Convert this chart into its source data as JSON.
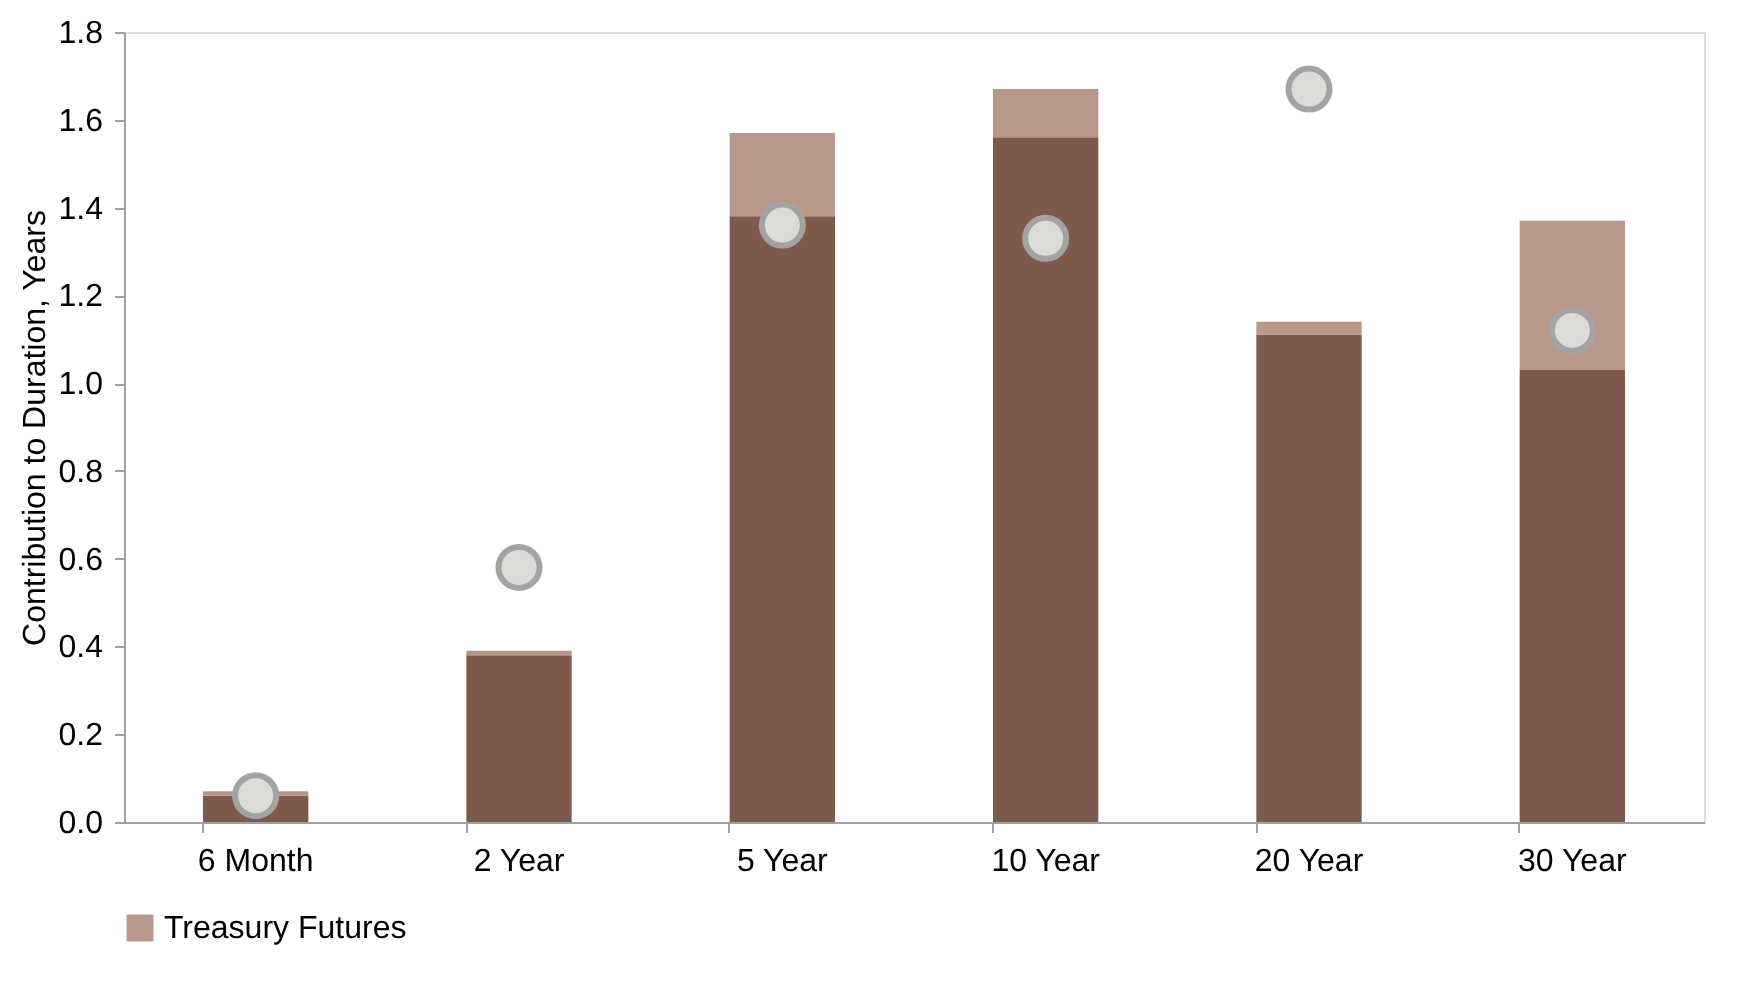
{
  "chart_data": {
    "type": "bar",
    "stacked": true,
    "ylabel": "Contribution to Duration, Years",
    "categories": [
      "6 Month",
      "2 Year",
      "5 Year",
      "10 Year",
      "20 Year",
      "30 Year"
    ],
    "series": [
      {
        "color": "#7f5a4c",
        "values": [
          0.06,
          0.38,
          1.38,
          1.56,
          1.11,
          1.03
        ]
      },
      {
        "name": "Treasury Futures",
        "color": "#b8968a",
        "values": [
          0.01,
          0.01,
          0.19,
          0.11,
          0.03,
          0.34
        ]
      },
      {
        "type": "scatter",
        "color": "#dcdbd7",
        "x": [
          "6 Month",
          "2 Year",
          "5 Year",
          "10 Year",
          "20 Year",
          "30 Year"
        ],
        "values": [
          0.06,
          0.58,
          1.36,
          1.33,
          1.67,
          1.12
        ]
      }
    ],
    "ylim": [
      0,
      1.8
    ],
    "yticks": [
      {
        "value": 0,
        "label": "0.0"
      },
      0.2,
      0.4,
      0.6,
      0.8,
      {
        "value": 1,
        "label": "1.0"
      },
      1.2,
      1.4,
      1.6,
      1.8
    ],
    "grid": false,
    "legend": "bottom",
    "marker": "circle"
  }
}
